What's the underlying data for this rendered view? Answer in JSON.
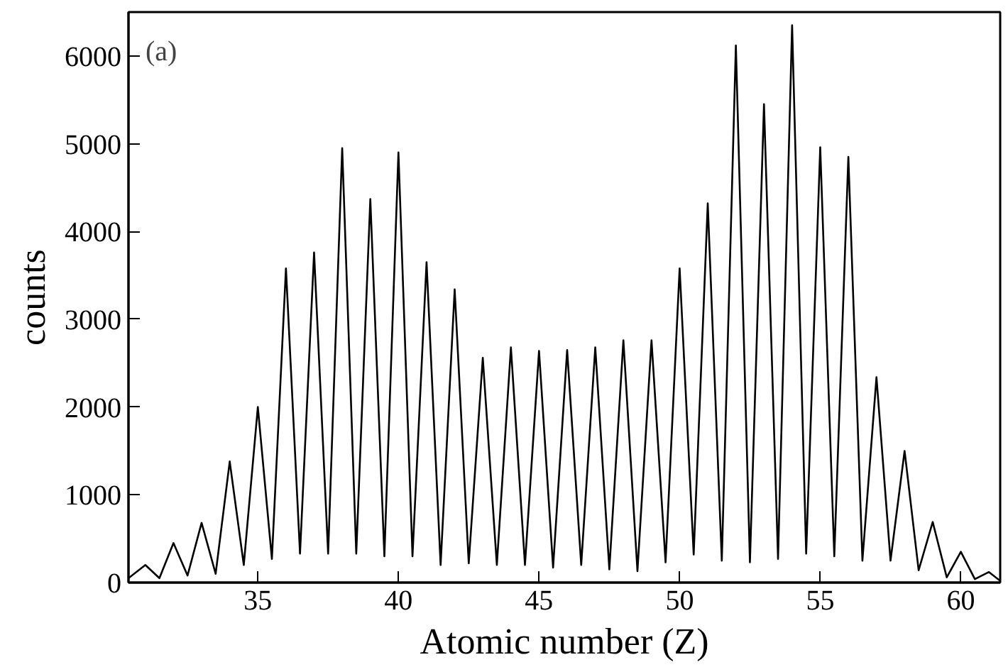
{
  "chart_data": {
    "type": "line",
    "xlabel": "Atomic number (Z)",
    "ylabel": "counts",
    "annotations": [
      "(a)"
    ],
    "x": [
      30.4,
      31,
      31.5,
      32,
      32.5,
      33,
      33.5,
      34,
      34.5,
      35,
      35.5,
      36,
      36.5,
      37,
      37.5,
      38,
      38.5,
      39,
      39.5,
      40,
      40.5,
      41,
      41.5,
      42,
      42.5,
      43,
      43.5,
      44,
      44.5,
      45,
      45.5,
      46,
      46.5,
      47,
      47.5,
      48,
      48.5,
      49,
      49.5,
      50,
      50.5,
      51,
      51.5,
      52,
      52.5,
      53,
      53.5,
      54,
      54.5,
      55,
      55.5,
      56,
      56.5,
      57,
      57.5,
      58,
      58.5,
      59,
      59.5,
      60,
      60.5,
      61,
      61.4
    ],
    "series": [
      {
        "color": "#000000",
        "values": [
          50,
          200,
          50,
          450,
          80,
          680,
          100,
          1380,
          200,
          2000,
          270,
          3580,
          330,
          3760,
          330,
          4950,
          330,
          4370,
          300,
          4900,
          300,
          3650,
          200,
          3340,
          220,
          2560,
          200,
          2680,
          200,
          2640,
          170,
          2650,
          200,
          2680,
          150,
          2760,
          130,
          2760,
          230,
          3580,
          320,
          4320,
          250,
          6120,
          230,
          5450,
          270,
          6350,
          330,
          4960,
          300,
          4850,
          250,
          2340,
          250,
          1500,
          140,
          690,
          60,
          350,
          40,
          120,
          20
        ]
      }
    ],
    "xlim": [
      30.4,
      61.4
    ],
    "ylim": [
      0,
      6500
    ],
    "xticks": [
      35,
      40,
      45,
      50,
      55,
      60
    ],
    "yticks": [
      0,
      1000,
      2000,
      3000,
      4000,
      5000,
      6000
    ],
    "grid": false,
    "marker": "none",
    "line_style": "solid"
  }
}
